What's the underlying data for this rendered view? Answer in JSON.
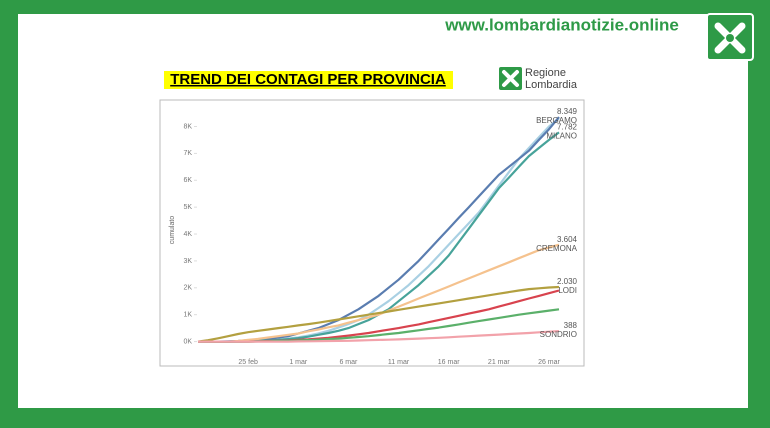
{
  "header": {
    "website": "www.lombardianotizie.online"
  },
  "slide": {
    "title": "TREND DEI CONTAGI PER PROVINCIA",
    "logo_text": [
      "Regione",
      "Lombardia"
    ]
  },
  "chart_data": {
    "type": "line",
    "y_label": "cumulato",
    "categories": [
      null,
      null,
      null,
      null,
      null,
      "25 feb",
      null,
      null,
      null,
      null,
      "1 mar",
      null,
      null,
      null,
      null,
      "6 mar",
      null,
      null,
      null,
      null,
      "11 mar",
      null,
      null,
      null,
      null,
      "16 mar",
      null,
      null,
      null,
      null,
      "21 mar",
      null,
      null,
      null,
      null,
      "26 mar",
      null
    ],
    "ylim": [
      -500,
      8800
    ],
    "yticks": [
      {
        "value": 0,
        "label": "0K"
      },
      {
        "value": 1000,
        "label": "1K"
      },
      {
        "value": 2000,
        "label": "2K"
      },
      {
        "value": 3000,
        "label": "3K"
      },
      {
        "value": 4000,
        "label": "4K"
      },
      {
        "value": 5000,
        "label": "5K"
      },
      {
        "value": 6000,
        "label": "6K"
      },
      {
        "value": 7000,
        "label": "7K"
      },
      {
        "value": 8000,
        "label": "8K"
      }
    ],
    "grid": false,
    "series": [
      {
        "color": "#a9d0e3",
        "values": [
          0,
          0,
          0,
          0,
          0,
          10,
          20,
          40,
          70,
          110,
          160,
          220,
          300,
          400,
          520,
          650,
          800,
          1000,
          1250,
          1500,
          1800,
          2100,
          2450,
          2800,
          3200,
          3600,
          4000,
          4400,
          4800,
          5300,
          5800,
          6300,
          6800,
          7200,
          7600,
          8000,
          8300
        ]
      },
      {
        "name": "BERGAMO",
        "color": "#5a7db0",
        "values": [
          0,
          0,
          0,
          10,
          20,
          50,
          70,
          100,
          150,
          200,
          300,
          400,
          500,
          650,
          800,
          1000,
          1200,
          1450,
          1700,
          2000,
          2300,
          2650,
          3000,
          3400,
          3800,
          4200,
          4600,
          5000,
          5400,
          5800,
          6200,
          6500,
          6800,
          7100,
          7500,
          7900,
          8349
        ],
        "value_labels": [
          null,
          null,
          null,
          null,
          null,
          null,
          null,
          null,
          null,
          null,
          null,
          null,
          null,
          null,
          null,
          null,
          null,
          null,
          null,
          null,
          null,
          null,
          null,
          null,
          null,
          null,
          null,
          null,
          null,
          null,
          null,
          null,
          null,
          null,
          null,
          null,
          "8.349"
        ]
      },
      {
        "name": "MILANO",
        "color": "#47a39a",
        "values": [
          0,
          0,
          0,
          0,
          10,
          20,
          30,
          40,
          60,
          90,
          130,
          180,
          250,
          320,
          400,
          500,
          650,
          800,
          1000,
          1200,
          1500,
          1800,
          2100,
          2450,
          2800,
          3200,
          3700,
          4200,
          4700,
          5200,
          5700,
          6100,
          6500,
          6900,
          7200,
          7500,
          7782
        ],
        "value_labels": [
          null,
          null,
          null,
          null,
          null,
          null,
          null,
          null,
          null,
          null,
          null,
          null,
          null,
          null,
          null,
          null,
          null,
          null,
          null,
          null,
          null,
          null,
          null,
          null,
          null,
          null,
          null,
          null,
          null,
          null,
          null,
          null,
          null,
          null,
          null,
          null,
          "7.782"
        ]
      },
      {
        "name": "CREMONA",
        "color": "#f5c28e",
        "values": [
          0,
          0,
          0,
          0,
          20,
          60,
          100,
          150,
          200,
          250,
          300,
          380,
          450,
          530,
          600,
          700,
          800,
          900,
          1000,
          1150,
          1300,
          1450,
          1600,
          1750,
          1900,
          2050,
          2200,
          2350,
          2500,
          2650,
          2800,
          2950,
          3100,
          3250,
          3400,
          3500,
          3604
        ],
        "value_labels": [
          null,
          null,
          null,
          null,
          null,
          null,
          null,
          null,
          null,
          null,
          null,
          null,
          null,
          null,
          null,
          null,
          null,
          null,
          null,
          null,
          null,
          null,
          null,
          null,
          null,
          null,
          null,
          null,
          null,
          null,
          null,
          null,
          null,
          null,
          null,
          null,
          "3.604"
        ]
      },
      {
        "name": "LODI",
        "color": "#b3a040",
        "values": [
          0,
          50,
          120,
          200,
          280,
          350,
          400,
          450,
          500,
          550,
          600,
          650,
          700,
          760,
          820,
          880,
          940,
          1000,
          1060,
          1120,
          1180,
          1240,
          1300,
          1360,
          1420,
          1480,
          1540,
          1600,
          1660,
          1720,
          1780,
          1840,
          1900,
          1950,
          1980,
          2010,
          2030
        ],
        "value_labels": [
          null,
          null,
          null,
          null,
          null,
          null,
          null,
          null,
          null,
          null,
          null,
          null,
          null,
          null,
          null,
          null,
          null,
          null,
          null,
          null,
          null,
          null,
          null,
          null,
          null,
          null,
          null,
          null,
          null,
          null,
          null,
          null,
          null,
          null,
          null,
          null,
          "2.030"
        ]
      },
      {
        "color": "#d8434e",
        "values": [
          0,
          0,
          0,
          0,
          0,
          0,
          10,
          20,
          30,
          40,
          60,
          80,
          110,
          140,
          180,
          220,
          270,
          320,
          380,
          440,
          500,
          570,
          640,
          720,
          800,
          880,
          960,
          1040,
          1120,
          1200,
          1300,
          1400,
          1500,
          1600,
          1700,
          1800,
          1900
        ]
      },
      {
        "color": "#5bb06a",
        "values": [
          0,
          0,
          0,
          0,
          0,
          0,
          5,
          10,
          20,
          30,
          40,
          55,
          70,
          90,
          110,
          140,
          170,
          200,
          240,
          280,
          320,
          370,
          420,
          470,
          520,
          580,
          640,
          700,
          760,
          820,
          880,
          940,
          1000,
          1050,
          1100,
          1150,
          1200
        ]
      },
      {
        "name": "SONDRIO",
        "color": "#f2a2aa",
        "values": [
          0,
          0,
          0,
          0,
          0,
          0,
          0,
          0,
          0,
          0,
          5,
          10,
          15,
          20,
          25,
          30,
          40,
          50,
          60,
          70,
          80,
          95,
          110,
          125,
          140,
          160,
          180,
          200,
          220,
          240,
          260,
          280,
          300,
          320,
          345,
          365,
          388
        ],
        "value_labels": [
          null,
          null,
          null,
          null,
          null,
          null,
          null,
          null,
          null,
          null,
          null,
          null,
          null,
          null,
          null,
          null,
          null,
          null,
          null,
          null,
          null,
          null,
          null,
          null,
          null,
          null,
          null,
          null,
          null,
          null,
          null,
          null,
          null,
          null,
          null,
          null,
          "388"
        ]
      }
    ]
  }
}
